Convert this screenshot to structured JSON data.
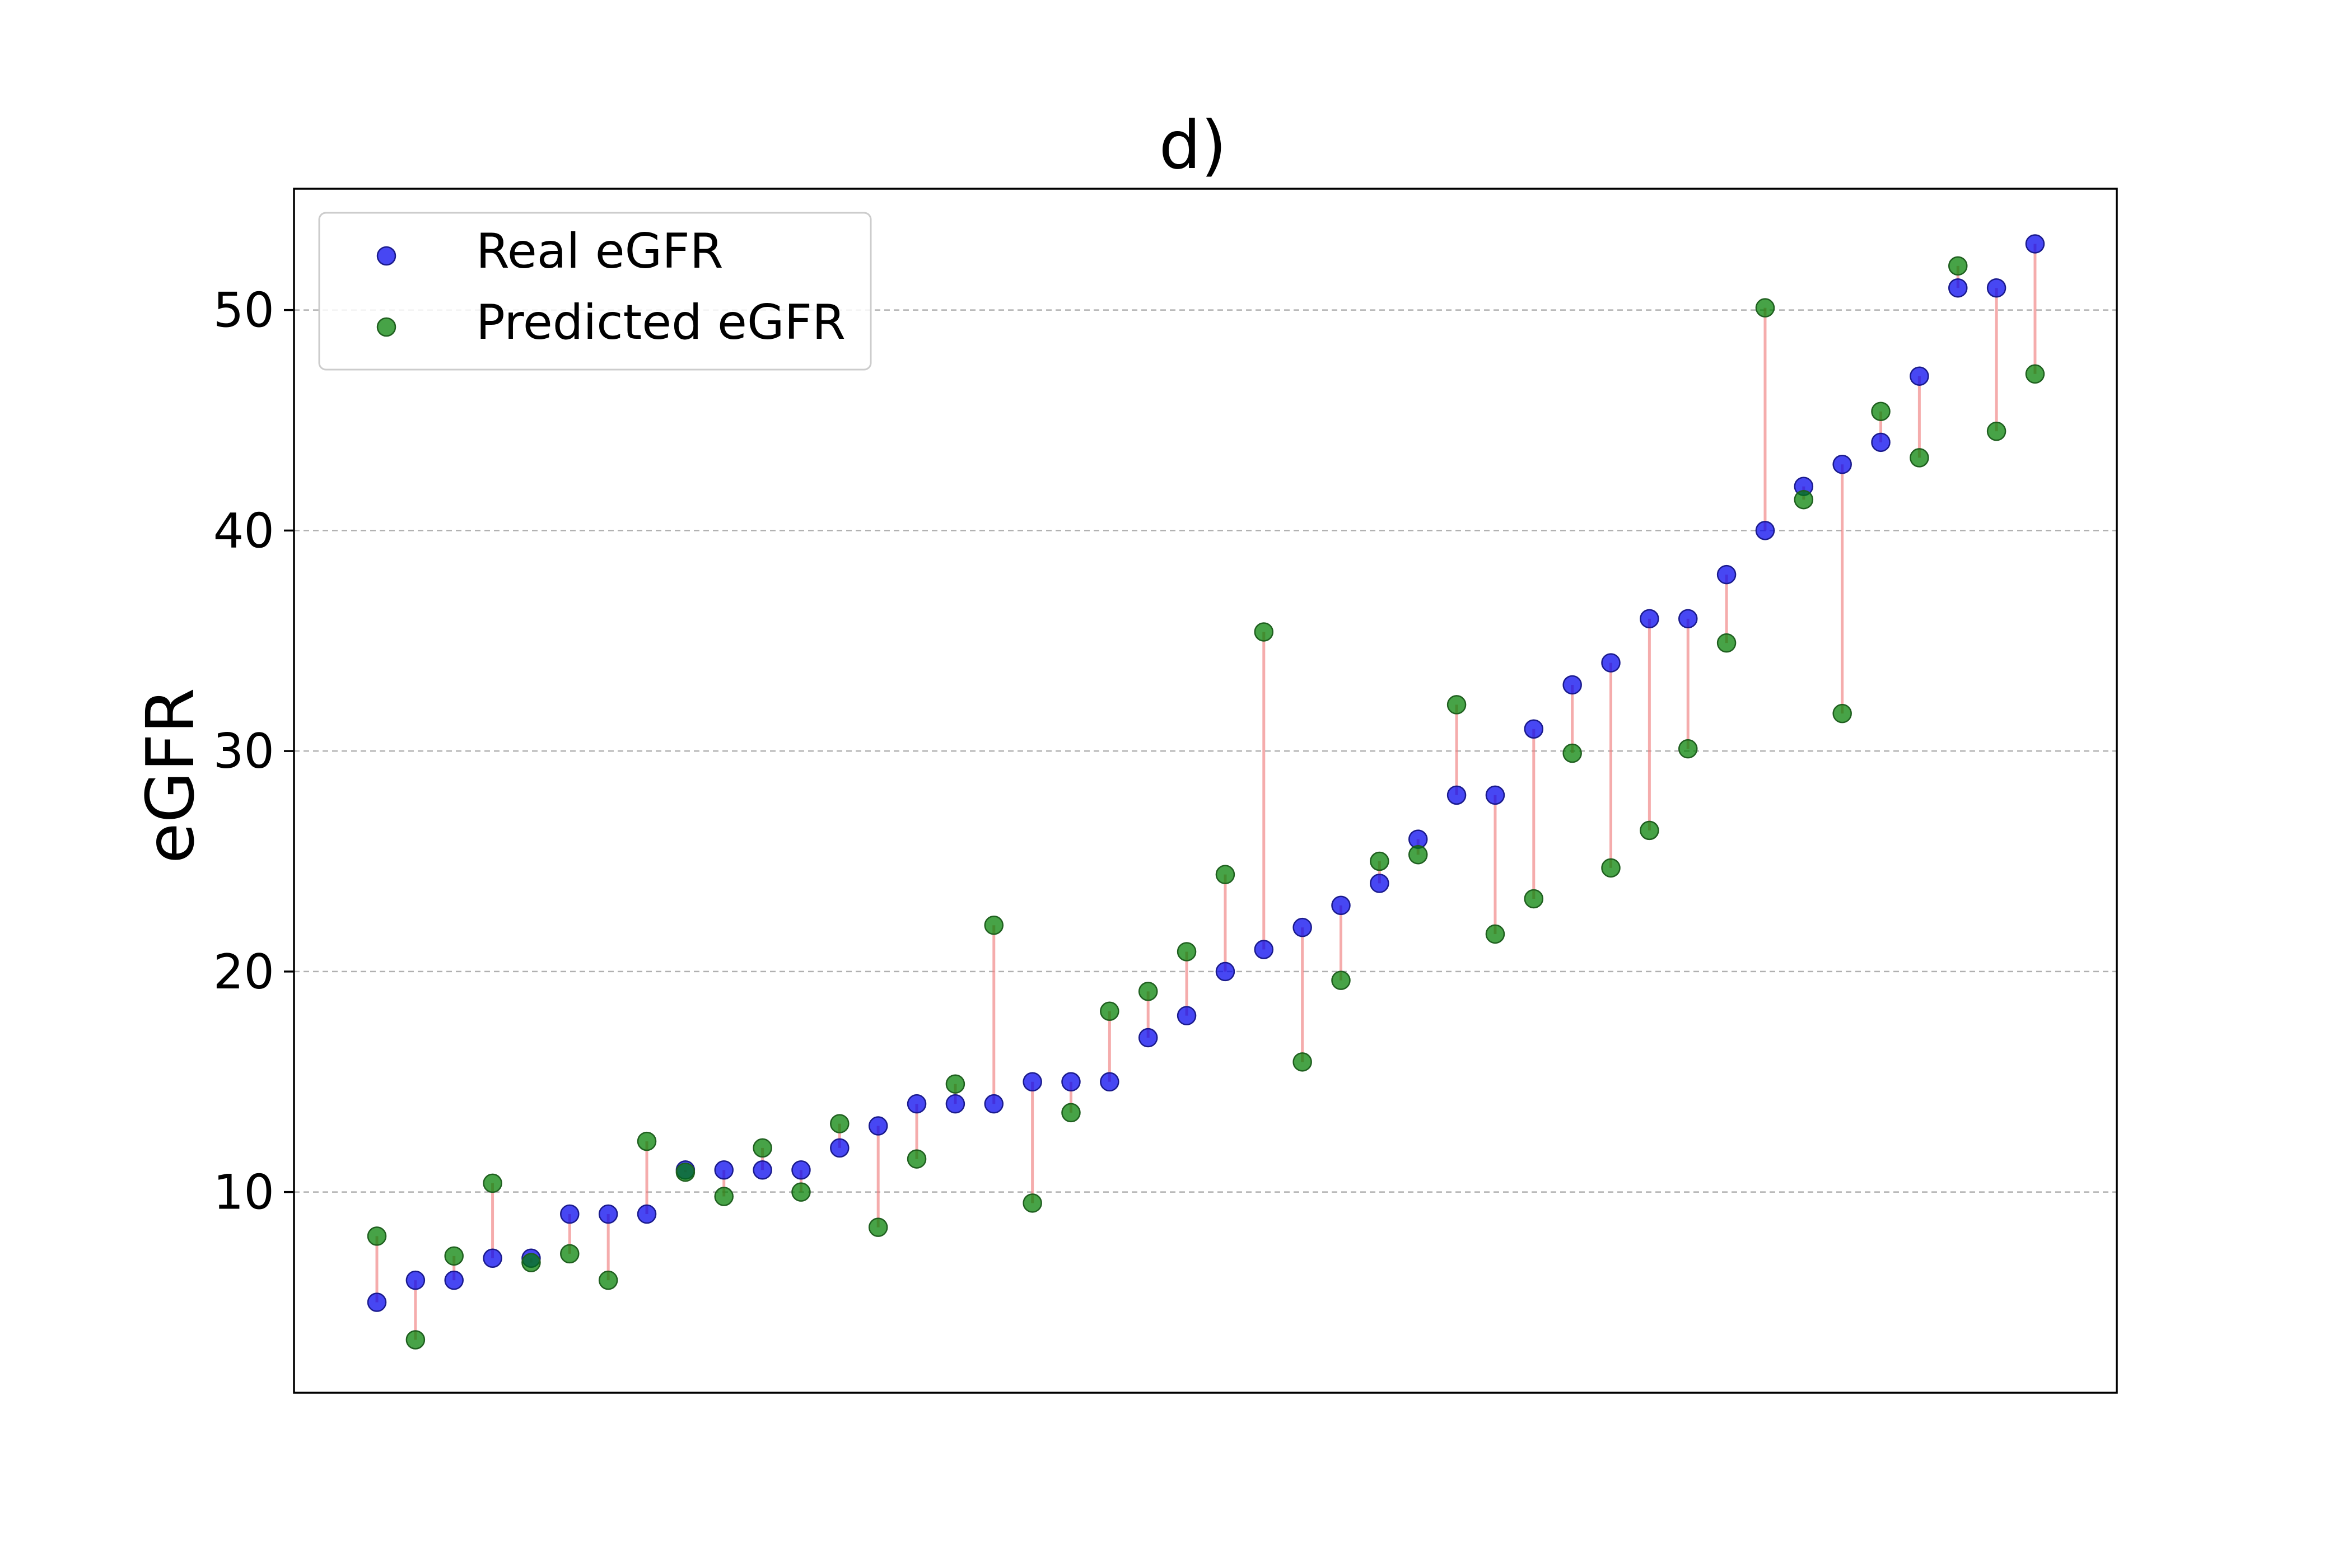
{
  "chart_data": {
    "type": "scatter",
    "title": "d)",
    "xlabel": "",
    "ylabel": "eGFR",
    "ylim": [
      0.9,
      55.5
    ],
    "yticks": [
      10,
      20,
      30,
      40,
      50
    ],
    "x_ticks_shown": false,
    "grid": "y-dashed",
    "legend_position": "top-left",
    "stem_color": "#f08080",
    "series": [
      {
        "name": "Real eGFR",
        "color": "#0000ee",
        "values": [
          5,
          6,
          6,
          7,
          7,
          9,
          9,
          9,
          11,
          11,
          11,
          11,
          12,
          13,
          14,
          14,
          14,
          15,
          15,
          15,
          17,
          18,
          20,
          21,
          22,
          23,
          24,
          26,
          28,
          28,
          31,
          33,
          34,
          36,
          36,
          38,
          40,
          42,
          43,
          44,
          47,
          51,
          51,
          53
        ]
      },
      {
        "name": "Predicted eGFR",
        "color": "#008000",
        "values": [
          8.0,
          3.3,
          7.1,
          10.4,
          6.8,
          7.2,
          6.0,
          12.3,
          10.9,
          9.8,
          12.0,
          10.0,
          13.1,
          8.4,
          11.5,
          14.9,
          22.1,
          9.5,
          13.6,
          18.2,
          19.1,
          20.9,
          24.4,
          35.4,
          15.9,
          19.6,
          25.0,
          25.3,
          32.1,
          21.7,
          23.3,
          29.9,
          24.7,
          26.4,
          30.1,
          34.9,
          50.1,
          41.4,
          31.7,
          45.4,
          43.3,
          52.0,
          44.5,
          47.1
        ]
      }
    ]
  }
}
